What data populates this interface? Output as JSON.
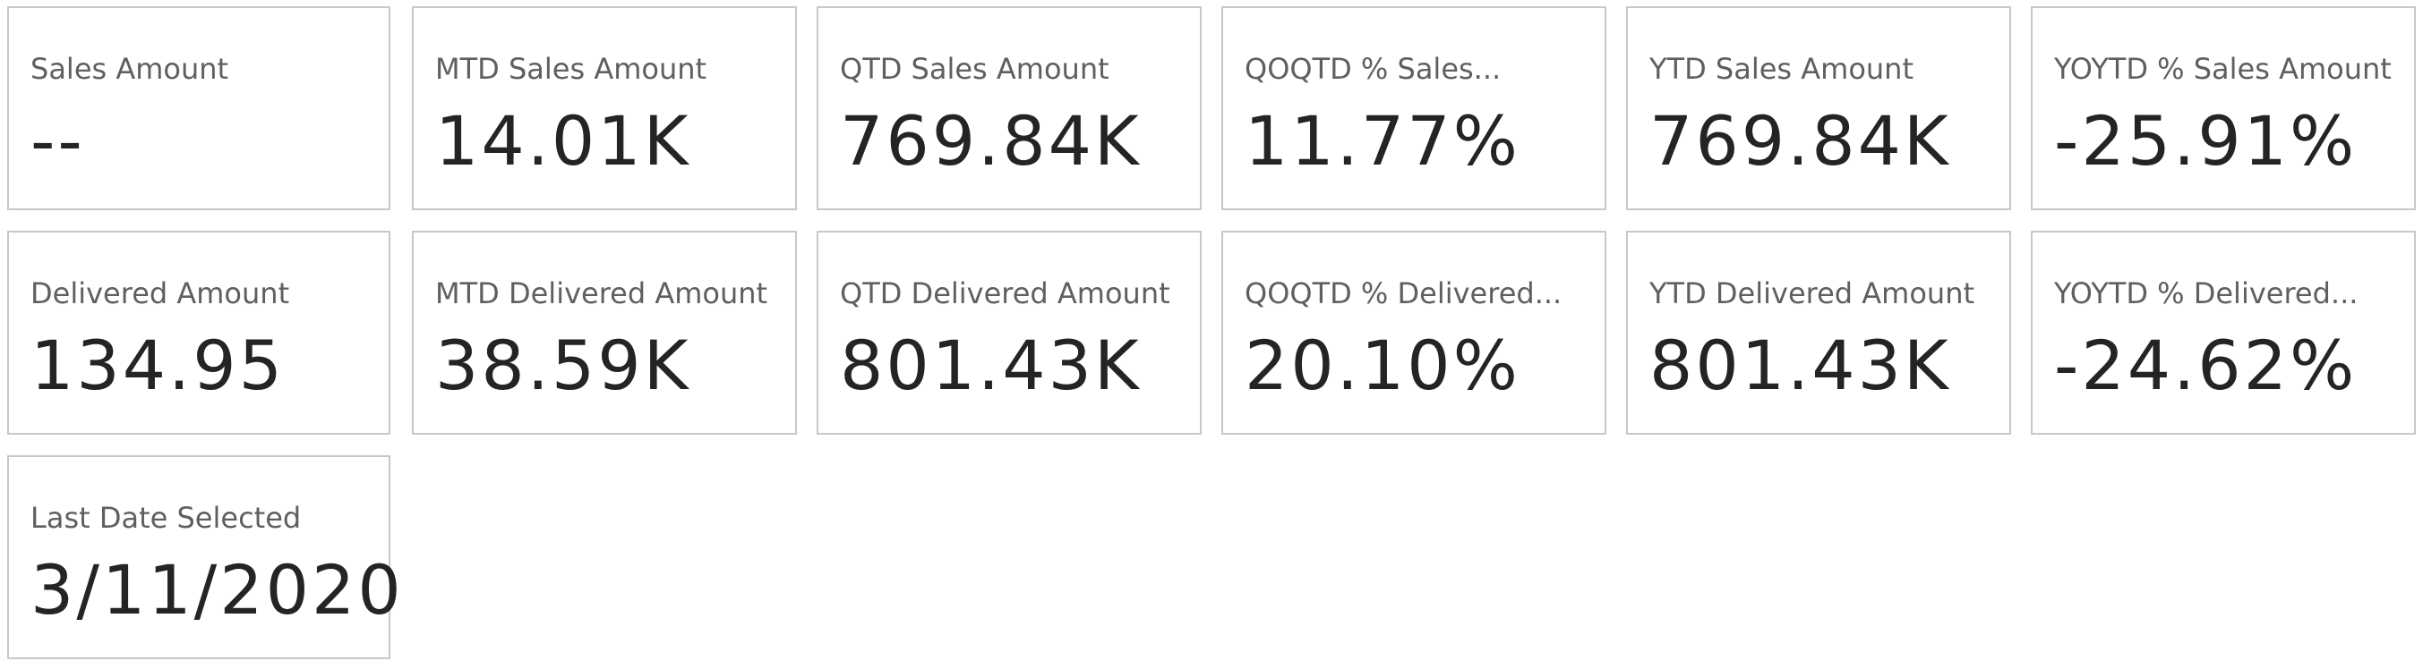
{
  "cards": [
    {
      "label": "Sales Amount",
      "value": "--"
    },
    {
      "label": "MTD Sales Amount",
      "value": "14.01K"
    },
    {
      "label": "QTD Sales Amount",
      "value": "769.84K"
    },
    {
      "label": "QOQTD % Sales...",
      "value": "11.77%"
    },
    {
      "label": "YTD Sales Amount",
      "value": "769.84K"
    },
    {
      "label": "YOYTD % Sales Amount",
      "value": "-25.91%"
    },
    {
      "label": "Delivered Amount",
      "value": "134.95"
    },
    {
      "label": "MTD Delivered Amount",
      "value": "38.59K"
    },
    {
      "label": "QTD Delivered Amount",
      "value": "801.43K"
    },
    {
      "label": "QOQTD % Delivered...",
      "value": "20.10%"
    },
    {
      "label": "YTD Delivered Amount",
      "value": "801.43K"
    },
    {
      "label": "YOYTD % Delivered...",
      "value": "-24.62%"
    },
    {
      "label": "Last Date Selected",
      "value": "3/11/2020"
    }
  ]
}
